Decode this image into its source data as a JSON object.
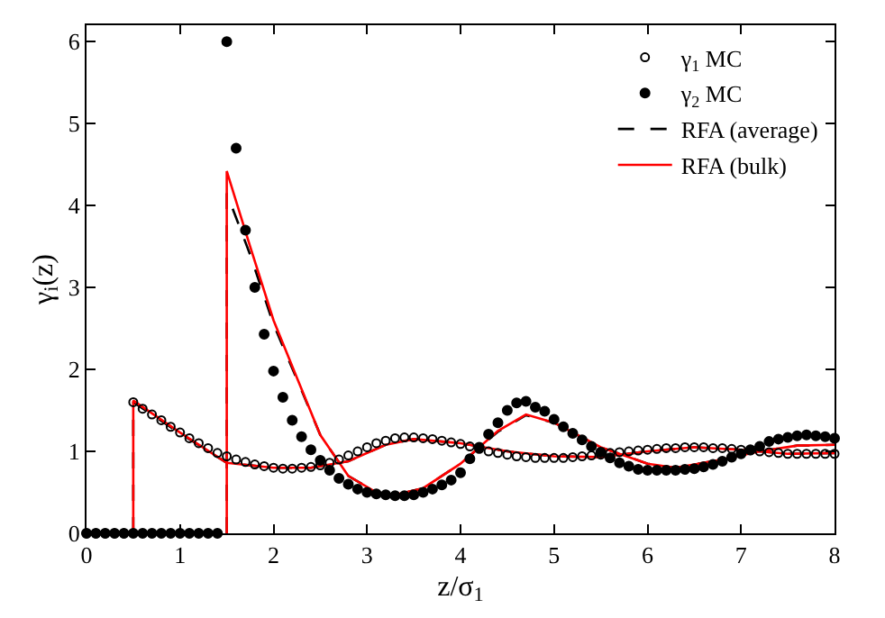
{
  "chart_data": {
    "type": "scatter",
    "xlabel": "z/σ$_{1}$",
    "ylabel": "γ$_{i}$(z)",
    "xlim": [
      0,
      8
    ],
    "ylim": [
      0,
      6.2
    ],
    "xticks": [
      0,
      1,
      2,
      3,
      4,
      5,
      6,
      7,
      8
    ],
    "yticks": [
      0,
      1,
      2,
      3,
      4,
      5,
      6
    ],
    "legend": "top right",
    "series": [
      {
        "name": "γ$_{1}$ MC",
        "marker": "circle-open",
        "color": "#000000",
        "x": [
          0,
          0.1,
          0.2,
          0.3,
          0.4,
          0.5,
          0.6,
          0.7,
          0.8,
          0.9,
          1.0,
          1.1,
          1.2,
          1.3,
          1.4,
          1.5,
          1.6,
          1.7,
          1.8,
          1.9,
          2.0,
          2.1,
          2.2,
          2.3,
          2.4,
          2.5,
          2.6,
          2.7,
          2.8,
          2.9,
          3.0,
          3.1,
          3.2,
          3.3,
          3.4,
          3.5,
          3.6,
          3.7,
          3.8,
          3.9,
          4.0,
          4.1,
          4.2,
          4.3,
          4.4,
          4.5,
          4.6,
          4.7,
          4.8,
          4.9,
          5.0,
          5.1,
          5.2,
          5.3,
          5.4,
          5.5,
          5.6,
          5.7,
          5.8,
          5.9,
          6.0,
          6.1,
          6.2,
          6.3,
          6.4,
          6.5,
          6.6,
          6.7,
          6.8,
          6.9,
          7.0,
          7.1,
          7.2,
          7.3,
          7.4,
          7.5,
          7.6,
          7.7,
          7.8,
          7.9,
          8.0
        ],
        "values": [
          0,
          0,
          0,
          0,
          0,
          1.6,
          1.52,
          1.45,
          1.38,
          1.3,
          1.23,
          1.16,
          1.1,
          1.04,
          0.98,
          0.94,
          0.9,
          0.87,
          0.84,
          0.82,
          0.8,
          0.79,
          0.79,
          0.8,
          0.81,
          0.83,
          0.86,
          0.9,
          0.95,
          1.0,
          1.05,
          1.1,
          1.13,
          1.16,
          1.17,
          1.17,
          1.16,
          1.15,
          1.13,
          1.11,
          1.09,
          1.06,
          1.03,
          1.0,
          0.98,
          0.96,
          0.94,
          0.93,
          0.92,
          0.92,
          0.92,
          0.92,
          0.93,
          0.94,
          0.95,
          0.96,
          0.98,
          0.99,
          1.0,
          1.01,
          1.02,
          1.03,
          1.04,
          1.04,
          1.05,
          1.05,
          1.05,
          1.04,
          1.04,
          1.03,
          1.02,
          1.01,
          1.0,
          0.99,
          0.98,
          0.97,
          0.97,
          0.97,
          0.97,
          0.97,
          0.97
        ]
      },
      {
        "name": "γ$_{2}$ MC",
        "marker": "circle",
        "color": "#000000",
        "x": [
          0,
          0.1,
          0.2,
          0.3,
          0.4,
          0.5,
          0.6,
          0.7,
          0.8,
          0.9,
          1.0,
          1.1,
          1.2,
          1.3,
          1.4,
          1.5,
          1.6,
          1.7,
          1.8,
          1.9,
          2.0,
          2.1,
          2.2,
          2.3,
          2.4,
          2.5,
          2.6,
          2.7,
          2.8,
          2.9,
          3.0,
          3.1,
          3.2,
          3.3,
          3.4,
          3.5,
          3.6,
          3.7,
          3.8,
          3.9,
          4.0,
          4.1,
          4.2,
          4.3,
          4.4,
          4.5,
          4.6,
          4.7,
          4.8,
          4.9,
          5.0,
          5.1,
          5.2,
          5.3,
          5.4,
          5.5,
          5.6,
          5.7,
          5.8,
          5.9,
          6.0,
          6.1,
          6.2,
          6.3,
          6.4,
          6.5,
          6.6,
          6.7,
          6.8,
          6.9,
          7.0,
          7.1,
          7.2,
          7.3,
          7.4,
          7.5,
          7.6,
          7.7,
          7.8,
          7.9,
          8.0
        ],
        "values": [
          0,
          0,
          0,
          0,
          0,
          0,
          0,
          0,
          0,
          0,
          0,
          0,
          0,
          0,
          0,
          6.0,
          4.7,
          3.7,
          3.0,
          2.43,
          1.98,
          1.66,
          1.38,
          1.18,
          1.02,
          0.89,
          0.77,
          0.67,
          0.6,
          0.54,
          0.5,
          0.48,
          0.47,
          0.46,
          0.46,
          0.47,
          0.5,
          0.54,
          0.59,
          0.65,
          0.74,
          0.91,
          1.05,
          1.21,
          1.35,
          1.5,
          1.59,
          1.61,
          1.54,
          1.49,
          1.39,
          1.3,
          1.22,
          1.14,
          1.06,
          0.99,
          0.92,
          0.86,
          0.82,
          0.78,
          0.77,
          0.77,
          0.77,
          0.77,
          0.78,
          0.79,
          0.81,
          0.84,
          0.88,
          0.93,
          0.97,
          1.02,
          1.06,
          1.12,
          1.15,
          1.17,
          1.19,
          1.2,
          1.19,
          1.18,
          1.16
        ]
      },
      {
        "name": "RFA (average)",
        "type": "line",
        "line_style": "dashed",
        "color": "#000000",
        "x": [
          0.5,
          0.5,
          1.0,
          1.5,
          2.0,
          2.4,
          2.8,
          3.2,
          3.5,
          4.0,
          4.5,
          5.0,
          5.5,
          6.0,
          6.5,
          7.0,
          7.5,
          8.0,
          null,
          1.5,
          1.5,
          1.75,
          2.0,
          2.25,
          2.5,
          2.8,
          3.1,
          3.3,
          3.6,
          4.0,
          4.4,
          4.7,
          5.0,
          5.5,
          6.0,
          6.3,
          6.8,
          7.2,
          7.6,
          8.0
        ],
        "values": [
          0,
          1.6,
          1.22,
          0.86,
          0.8,
          0.8,
          0.88,
          1.08,
          1.15,
          1.1,
          1.0,
          0.94,
          0.93,
          1.0,
          1.05,
          1.02,
          0.97,
          0.98,
          null,
          0,
          4.15,
          3.4,
          2.55,
          1.88,
          1.2,
          0.7,
          0.5,
          0.47,
          0.55,
          0.85,
          1.24,
          1.44,
          1.35,
          1.05,
          0.85,
          0.8,
          0.9,
          1.0,
          1.07,
          1.08
        ]
      },
      {
        "name": "RFA (bulk)",
        "type": "line",
        "line_style": "solid",
        "color": "#ff0000",
        "x": [
          0.5,
          0.5,
          1.0,
          1.5,
          2.0,
          2.4,
          2.8,
          3.2,
          3.5,
          4.0,
          4.5,
          5.0,
          5.5,
          6.0,
          6.5,
          7.0,
          7.5,
          8.0,
          null,
          1.5,
          1.5,
          1.75,
          2.0,
          2.25,
          2.5,
          2.8,
          3.1,
          3.3,
          3.6,
          4.0,
          4.4,
          4.7,
          5.0,
          5.5,
          6.0,
          6.3,
          6.8,
          7.2,
          7.6,
          8.0
        ],
        "values": [
          0,
          1.62,
          1.23,
          0.86,
          0.8,
          0.8,
          0.88,
          1.08,
          1.15,
          1.1,
          1.0,
          0.94,
          0.93,
          1.0,
          1.05,
          1.02,
          0.97,
          0.98,
          null,
          0,
          4.42,
          3.5,
          2.6,
          1.9,
          1.2,
          0.7,
          0.5,
          0.47,
          0.55,
          0.85,
          1.25,
          1.45,
          1.35,
          1.05,
          0.85,
          0.8,
          0.9,
          1.0,
          1.07,
          1.08
        ]
      }
    ]
  }
}
